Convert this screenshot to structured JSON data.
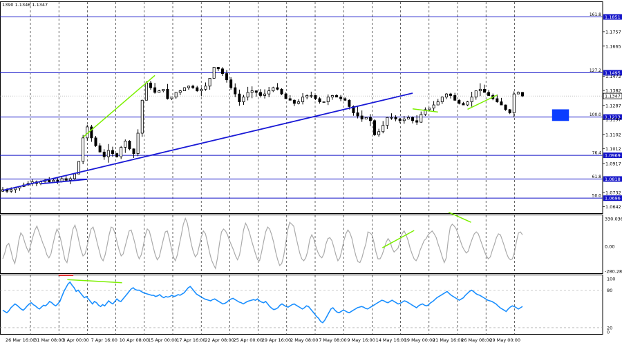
{
  "header": {
    "ohlc_text": "1390 1.1346 1.1347"
  },
  "colors": {
    "candle": "#000000",
    "fib_line": "#1414c8",
    "trendline": "#1a1ad6",
    "divergence": "#7cf000",
    "box": "#0a3cff",
    "oscillator": "#aaaaaa",
    "rsi": "#1a8fff",
    "marker_red": "#dd0000",
    "grid": "#000000"
  },
  "chart_data": [
    {
      "type": "candlestick",
      "panel": "price",
      "ylim": [
        1.06,
        1.195
      ],
      "price_ticks": [
        "1.1757",
        "1.1665",
        "1.1472",
        "1.1382",
        "1.1287",
        "1.1197",
        "1.1102",
        "1.1012",
        "1.0917",
        "1.0732",
        "1.0642"
      ],
      "fib_levels": [
        {
          "label": "161.8",
          "value": 1.1851,
          "value_label": "1.1851"
        },
        {
          "label": "127.2",
          "value": 1.1495,
          "value_label": "1.1495"
        },
        {
          "label": "100.0",
          "value": 1.1213,
          "value_label": "1.1213"
        },
        {
          "label": "76.4",
          "value": 1.0969,
          "value_label": "1.0969"
        },
        {
          "label": "61.8",
          "value": 1.0818,
          "value_label": "1.0818"
        },
        {
          "label": "50.0",
          "value": 1.0696,
          "value_label": "1.0696"
        }
      ],
      "current_price": "1.1347",
      "x_labels": [
        "26 Mar 16:00",
        "31 Mar 08:00",
        "3 Apr 00:00",
        "7 Apr 16:00",
        "10 Apr 08:00",
        "15 Apr 00:00",
        "17 Apr 16:00",
        "22 Apr 08:00",
        "25 Apr 00:00",
        "29 Apr 16:00",
        "2 May 08:00",
        "7 May 08:00",
        "9 May 16:00",
        "14 May 16:00",
        "19 May 00:00",
        "21 May 16:00",
        "26 May 08:00",
        "29 May 00:00"
      ],
      "close_series": [
        1.075,
        1.074,
        1.075,
        1.076,
        1.077,
        1.078,
        1.079,
        1.08,
        1.079,
        1.08,
        1.081,
        1.08,
        1.081,
        1.08,
        1.082,
        1.081,
        1.082,
        1.085,
        1.093,
        1.108,
        1.115,
        1.108,
        1.103,
        1.099,
        1.096,
        1.1,
        1.098,
        1.096,
        1.102,
        1.106,
        1.101,
        1.098,
        1.111,
        1.132,
        1.143,
        1.14,
        1.137,
        1.138,
        1.139,
        1.133,
        1.134,
        1.137,
        1.138,
        1.14,
        1.141,
        1.14,
        1.138,
        1.139,
        1.141,
        1.146,
        1.153,
        1.152,
        1.149,
        1.145,
        1.14,
        1.136,
        1.131,
        1.134,
        1.137,
        1.138,
        1.137,
        1.135,
        1.136,
        1.138,
        1.14,
        1.139,
        1.136,
        1.133,
        1.132,
        1.13,
        1.131,
        1.134,
        1.135,
        1.135,
        1.133,
        1.131,
        1.131,
        1.134,
        1.135,
        1.134,
        1.133,
        1.132,
        1.128,
        1.124,
        1.122,
        1.12,
        1.121,
        1.119,
        1.11,
        1.112,
        1.116,
        1.121,
        1.121,
        1.12,
        1.119,
        1.12,
        1.121,
        1.119,
        1.118,
        1.123,
        1.126,
        1.127,
        1.129,
        1.131,
        1.134,
        1.136,
        1.135,
        1.132,
        1.13,
        1.129,
        1.131,
        1.134,
        1.138,
        1.139,
        1.137,
        1.135,
        1.133,
        1.131,
        1.129,
        1.126,
        1.124,
        1.136,
        1.137,
        1.1347
      ],
      "trendlines": [
        {
          "name": "rising-support",
          "points": [
            {
              "i": 0,
              "v": 1.0745
            },
            {
              "i": 97,
              "v": 1.1365
            }
          ]
        },
        {
          "name": "short-support",
          "points": [
            {
              "i": 9,
              "v": 1.0788
            },
            {
              "i": 20,
              "v": 1.0816
            }
          ]
        }
      ],
      "divergence_lines": [
        {
          "points": [
            {
              "i": 19,
              "v": 1.1085
            },
            {
              "i": 36,
              "v": 1.1478
            }
          ]
        },
        {
          "points": [
            {
              "i": 97,
              "v": 1.1265
            },
            {
              "i": 103,
              "v": 1.1245
            }
          ]
        },
        {
          "points": [
            {
              "i": 110,
              "v": 1.1262
            },
            {
              "i": 117,
              "v": 1.1353
            }
          ]
        }
      ],
      "box": {
        "from_i": 130,
        "to_i": 134,
        "top": 1.1262,
        "bottom": 1.1188
      }
    },
    {
      "type": "line",
      "panel": "oscillator",
      "ylim": [
        -280.2842,
        330.0361
      ],
      "ticks": [
        "330.0361",
        "0.00",
        "-280.2842"
      ],
      "values": [
        -130,
        -70,
        10,
        30,
        -40,
        -130,
        -180,
        -80,
        60,
        140,
        110,
        40,
        -20,
        -60,
        20,
        100,
        170,
        210,
        150,
        90,
        30,
        -20,
        -90,
        -120,
        -80,
        20,
        110,
        180,
        140,
        60,
        -40,
        -140,
        -170,
        -70,
        60,
        180,
        220,
        150,
        50,
        -40,
        -100,
        -80,
        0,
        90,
        180,
        200,
        130,
        40,
        -40,
        -120,
        -150,
        -90,
        10,
        120,
        200,
        190,
        130,
        40,
        -40,
        -100,
        -80,
        0,
        80,
        160,
        170,
        100,
        20,
        -80,
        -130,
        -90,
        0,
        110,
        180,
        160,
        80,
        -10,
        -90,
        -140,
        -110,
        -20,
        70,
        150,
        160,
        80,
        -20,
        -110,
        -150,
        -90,
        20,
        120,
        230,
        290,
        240,
        130,
        20,
        -60,
        -110,
        -80,
        10,
        100,
        160,
        130,
        40,
        -60,
        -140,
        -190,
        -230,
        -120,
        30,
        150,
        180,
        160,
        120,
        60,
        10,
        -40,
        -100,
        -140,
        -90,
        30,
        170,
        240,
        200,
        140,
        60,
        -10,
        -80,
        -140,
        -150,
        -60,
        50,
        150,
        200,
        180,
        120,
        40,
        -60,
        -140,
        -200,
        -180,
        -100,
        30,
        170,
        250,
        230,
        210,
        110,
        20,
        -70,
        -130,
        -150,
        -120,
        -50,
        70,
        120,
        80,
        0,
        -60,
        -100,
        -120,
        -80,
        20,
        80,
        90,
        60,
        -10,
        -90,
        -150,
        -120,
        -40,
        60,
        130,
        170,
        140,
        80,
        -20,
        -100,
        -160,
        -170,
        -120,
        -40,
        30,
        150,
        140,
        120,
        40,
        -60,
        -130,
        -130,
        -90,
        -30,
        40,
        80,
        50,
        -20,
        -60,
        -40,
        -20,
        50,
        130,
        160,
        120,
        60,
        -20,
        -80,
        -130,
        -150,
        -110,
        -40,
        10,
        60,
        80,
        120,
        140,
        160,
        130,
        90,
        20,
        -40,
        -110,
        -170,
        -120,
        70,
        200,
        230,
        210,
        180,
        120,
        60,
        0,
        -40,
        -70,
        -50,
        20,
        80,
        130,
        150,
        130,
        70,
        10,
        -50,
        -100,
        -130,
        -110,
        -40,
        20,
        90,
        130,
        120,
        60,
        0,
        -70,
        -120,
        -140,
        -130,
        -60,
        50,
        140,
        150,
        120
      ],
      "divergence_lines": [
        {
          "points": [
            {
              "t": 0.694,
              "v": -15
            },
            {
              "t": 0.752,
              "v": 165
            }
          ]
        },
        {
          "points": [
            {
              "t": 0.815,
              "v": 355
            },
            {
              "t": 0.856,
              "v": 250
            }
          ]
        }
      ]
    },
    {
      "type": "line",
      "panel": "rsi",
      "ylim": [
        10,
        105
      ],
      "ticks": [
        "100",
        "80",
        "20",
        "0"
      ],
      "levels": [
        80,
        20
      ],
      "values": [
        48,
        46,
        44,
        47,
        52,
        55,
        58,
        56,
        53,
        50,
        48,
        51,
        55,
        58,
        60,
        57,
        55,
        52,
        50,
        53,
        56,
        55,
        58,
        62,
        60,
        57,
        55,
        58,
        62,
        70,
        78,
        84,
        90,
        93,
        88,
        84,
        78,
        80,
        76,
        72,
        68,
        70,
        66,
        62,
        58,
        62,
        60,
        56,
        54,
        57,
        55,
        59,
        63,
        60,
        58,
        62,
        66,
        63,
        62,
        66,
        70,
        74,
        78,
        82,
        84,
        81,
        80,
        80,
        78,
        76,
        75,
        74,
        73,
        72,
        72,
        70,
        71,
        73,
        70,
        68,
        70,
        69,
        70,
        72,
        70,
        71,
        73,
        72,
        74,
        76,
        80,
        84,
        86,
        82,
        78,
        74,
        72,
        70,
        68,
        66,
        65,
        64,
        63,
        65,
        66,
        64,
        62,
        60,
        58,
        59,
        61,
        64,
        66,
        67,
        65,
        63,
        61,
        60,
        58,
        60,
        62,
        63,
        64,
        65,
        64,
        66,
        63,
        61,
        60,
        62,
        58,
        54,
        51,
        49,
        50,
        52,
        56,
        58,
        56,
        54,
        53,
        55,
        57,
        58,
        56,
        54,
        52,
        50,
        52,
        55,
        54,
        50,
        46,
        42,
        38,
        35,
        30,
        28,
        32,
        38,
        44,
        50,
        52,
        48,
        45,
        44,
        46,
        48,
        47,
        45,
        44,
        46,
        48,
        50,
        52,
        53,
        54,
        53,
        51,
        50,
        52,
        54,
        56,
        58,
        60,
        62,
        64,
        63,
        61,
        60,
        62,
        64,
        62,
        60,
        58,
        59,
        61,
        63,
        62,
        60,
        58,
        56,
        54,
        52,
        55,
        57,
        58,
        56,
        55,
        57,
        60,
        62,
        65,
        68,
        70,
        72,
        74,
        76,
        78,
        75,
        72,
        70,
        68,
        66,
        64,
        66,
        68,
        72,
        75,
        78,
        80,
        78,
        75,
        73,
        72,
        70,
        68,
        66,
        64,
        63,
        62,
        60,
        58,
        55,
        52,
        50,
        48,
        46,
        50,
        53,
        55,
        54,
        52,
        50,
        52,
        54
      ],
      "red_marker": {
        "t0": 0.102,
        "t1": 0.129,
        "v": 104
      },
      "divergence_lines": [
        {
          "points": [
            {
              "t": 0.118,
              "v": 97
            },
            {
              "t": 0.218,
              "v": 92
            }
          ]
        }
      ]
    }
  ]
}
